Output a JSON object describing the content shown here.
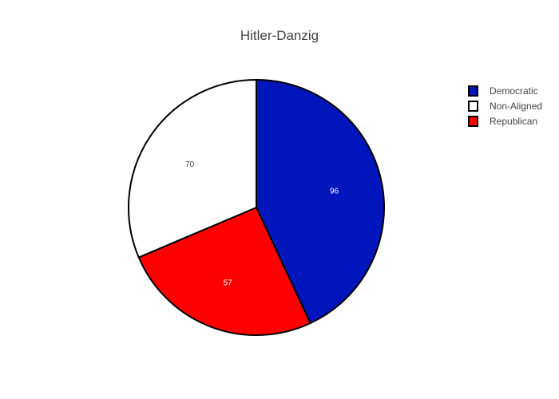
{
  "chart_data": {
    "type": "pie",
    "title": "Hitler-Danzig",
    "slices": [
      {
        "label": "Democratic",
        "value": 96,
        "color": "#0015bc",
        "text_color": "#ffffff"
      },
      {
        "label": "Republican",
        "value": 57,
        "color": "#ff0000",
        "text_color": "#ffffff"
      },
      {
        "label": "Non-Aligned",
        "value": 70,
        "color": "#ffffff",
        "text_color": "#444444"
      }
    ],
    "legend": {
      "position": "right",
      "order": [
        "Democratic",
        "Non-Aligned",
        "Republican"
      ]
    },
    "slice_outline_color": "#000000"
  }
}
